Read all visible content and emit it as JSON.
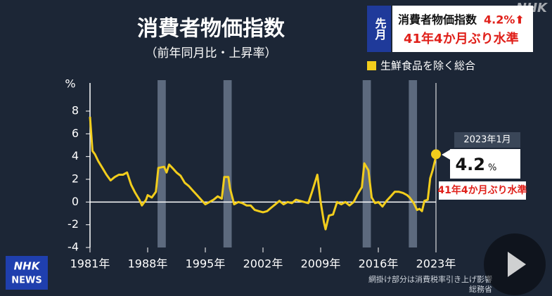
{
  "chart_data": {
    "type": "line",
    "title": "消費者物価指数",
    "subtitle": "（前年同月比・上昇率）",
    "y_unit": "%",
    "xlim": [
      1981,
      2023
    ],
    "xticks": [
      {
        "value": 1981,
        "label": "1981年"
      },
      {
        "value": 1988,
        "label": "1988年"
      },
      {
        "value": 1995,
        "label": "1995年"
      },
      {
        "value": 2002,
        "label": "2002年"
      },
      {
        "value": 2009,
        "label": "2009年"
      },
      {
        "value": 2016,
        "label": "2016年"
      },
      {
        "value": 2023,
        "label": "2023年"
      }
    ],
    "ylim": [
      -4,
      8
    ],
    "yticks": [
      -4,
      -2,
      0,
      2,
      4,
      6,
      8
    ],
    "grid": false,
    "legend": "top-right",
    "shaded_periods": [
      [
        1989.2,
        1990.2
      ],
      [
        1997.2,
        1998.2
      ],
      [
        2014.1,
        2015.1
      ],
      [
        2019.7,
        2020.7
      ]
    ],
    "x": [
      1981.0,
      1981.3,
      1981.6,
      1982,
      1982.5,
      1983,
      1983.5,
      1984,
      1984.5,
      1985,
      1985.5,
      1986,
      1986.5,
      1987,
      1987.3,
      1987.8,
      1988,
      1988.5,
      1989,
      1989.3,
      1990,
      1990.3,
      1990.6,
      1991,
      1991.5,
      1992,
      1992.5,
      1993,
      1993.5,
      1994,
      1994.5,
      1995,
      1995.5,
      1996,
      1996.5,
      1997,
      1997.3,
      1997.8,
      1998,
      1998.5,
      1999,
      1999.5,
      2000,
      2000.5,
      2001,
      2001.5,
      2002,
      2002.5,
      2003,
      2003.5,
      2004,
      2004.5,
      2005,
      2005.5,
      2006,
      2006.5,
      2007,
      2007.5,
      2008,
      2008.6,
      2009,
      2009.4,
      2009.6,
      2010,
      2010.5,
      2011,
      2011.5,
      2012,
      2012.5,
      2013,
      2013.5,
      2014,
      2014.3,
      2014.8,
      2015.2,
      2015.6,
      2016,
      2016.5,
      2017,
      2017.5,
      2018,
      2018.5,
      2019,
      2019.5,
      2019.8,
      2020.3,
      2020.7,
      2021,
      2021.3,
      2021.6,
      2022,
      2022.3,
      2022.6,
      2022.9,
      2023.0
    ],
    "series": [
      {
        "name": "生鮮食品を除く総合",
        "color": "#f2cd1c",
        "values": [
          7.5,
          4.5,
          4.2,
          3.6,
          3.0,
          2.4,
          1.9,
          2.2,
          2.4,
          2.4,
          2.6,
          1.5,
          0.8,
          0.2,
          -0.3,
          0.2,
          0.6,
          0.4,
          0.9,
          3.0,
          3.1,
          2.6,
          3.3,
          3.0,
          2.6,
          2.3,
          1.7,
          1.4,
          1.0,
          0.6,
          0.2,
          -0.2,
          0.0,
          0.2,
          0.5,
          0.3,
          2.2,
          2.2,
          1.2,
          -0.2,
          0.0,
          -0.1,
          -0.3,
          -0.3,
          -0.7,
          -0.8,
          -0.9,
          -0.8,
          -0.5,
          -0.2,
          0.1,
          -0.2,
          0.0,
          -0.1,
          0.2,
          0.1,
          0.0,
          -0.1,
          1.0,
          2.4,
          0.0,
          -1.8,
          -2.4,
          -1.2,
          -1.1,
          0.0,
          -0.2,
          0.0,
          -0.3,
          0.0,
          0.7,
          1.3,
          3.4,
          2.8,
          0.4,
          -0.1,
          0.0,
          -0.4,
          0.1,
          0.5,
          0.9,
          0.9,
          0.8,
          0.6,
          0.4,
          -0.1,
          -0.7,
          -0.6,
          -0.8,
          0.1,
          0.2,
          2.1,
          2.8,
          3.7,
          4.2
        ]
      }
    ],
    "callout_date": "2023年1月",
    "callout_value": "4.2",
    "callout_unit": "%",
    "callout_note": "41年4か月ぶり水準",
    "banner_tag": "先月",
    "banner_line1": "消費者物価指数",
    "banner_line1_value": "4.2%⬆",
    "banner_line2": "41年4か月ぶり水準",
    "footnote": "網掛け部分は消費税率引き上げ影響",
    "source": "総務省",
    "logo_top": "NHK",
    "logo_bottom": "NEWS",
    "watermark": "NHK"
  }
}
